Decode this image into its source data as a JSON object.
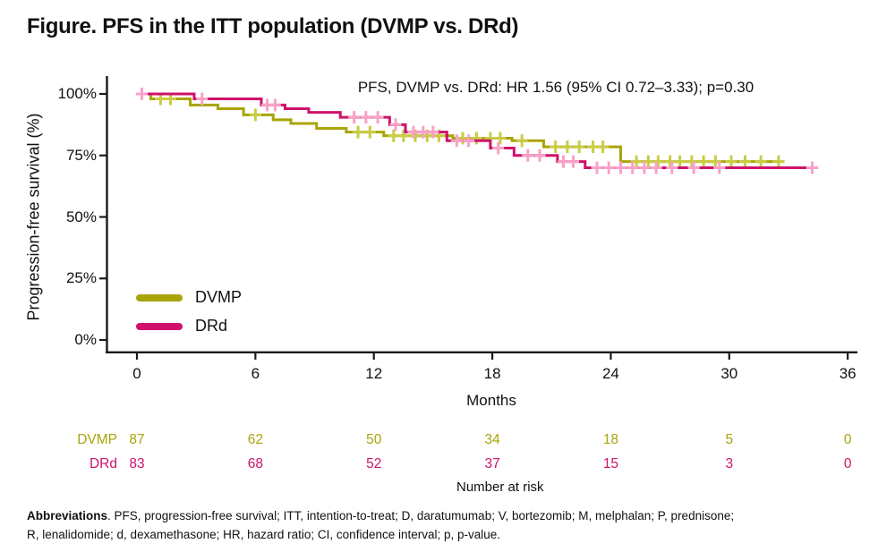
{
  "title": "Figure. PFS in the ITT population (DVMP vs. DRd)",
  "annotation": "PFS, DVMP vs. DRd: HR 1.56 (95% CI 0.72–3.33); p=0.30",
  "colors": {
    "dvmp_line": "#a8a40a",
    "dvmp_censor": "#c9cc44",
    "drd_line": "#d0116b",
    "drd_censor": "#f8a2c8",
    "axis": "#1a1a1a",
    "text": "#111111"
  },
  "legend": {
    "items": [
      {
        "label": "DVMP",
        "color": "#a8a40a"
      },
      {
        "label": "DRd",
        "color": "#d0116b"
      }
    ]
  },
  "chart_data": {
    "type": "line",
    "subtype": "kaplan-meier-step",
    "xlabel": "Months",
    "ylabel": "Progression-free survival (%)",
    "xlim": [
      0,
      36.5
    ],
    "ylim": [
      0,
      100
    ],
    "x_ticks": [
      0,
      6,
      12,
      18,
      24,
      30,
      36
    ],
    "y_ticks": [
      0,
      25,
      50,
      75,
      100
    ],
    "y_tick_suffix": "%",
    "grid": false,
    "legend_position": "lower-left-inside",
    "annotation": "PFS, DVMP vs. DRd: HR 1.56 (95% CI 0.72–3.33); p=0.30",
    "series": [
      {
        "name": "DVMP",
        "color": "#a8a40a",
        "censor_color": "#c9cc44",
        "end_month": 32.8,
        "steps": [
          [
            0,
            100
          ],
          [
            0.7,
            98
          ],
          [
            2.7,
            95.5
          ],
          [
            4.1,
            94
          ],
          [
            5.4,
            91.5
          ],
          [
            6.9,
            89.5
          ],
          [
            7.8,
            88
          ],
          [
            9.1,
            86
          ],
          [
            10.6,
            84.5
          ],
          [
            12.5,
            83
          ],
          [
            16,
            82
          ],
          [
            19,
            81
          ],
          [
            20.6,
            78.5
          ],
          [
            24.5,
            72.5
          ]
        ],
        "censors": [
          [
            1.2,
            98
          ],
          [
            1.7,
            98
          ],
          [
            6.0,
            91.5
          ],
          [
            11.2,
            84.5
          ],
          [
            11.8,
            84.5
          ],
          [
            13.0,
            83
          ],
          [
            13.5,
            83
          ],
          [
            14.1,
            83
          ],
          [
            14.7,
            83
          ],
          [
            15.3,
            83
          ],
          [
            16.5,
            82
          ],
          [
            17.2,
            82
          ],
          [
            17.9,
            82
          ],
          [
            18.4,
            82
          ],
          [
            19.5,
            81
          ],
          [
            21.2,
            78.5
          ],
          [
            21.8,
            78.5
          ],
          [
            22.4,
            78.5
          ],
          [
            23.1,
            78.5
          ],
          [
            23.6,
            78.5
          ],
          [
            25.3,
            72.5
          ],
          [
            25.9,
            72.5
          ],
          [
            26.4,
            72.5
          ],
          [
            27.0,
            72.5
          ],
          [
            27.5,
            72.5
          ],
          [
            28.1,
            72.5
          ],
          [
            28.7,
            72.5
          ],
          [
            29.3,
            72.5
          ],
          [
            30.1,
            72.5
          ],
          [
            30.8,
            72.5
          ],
          [
            31.6,
            72.5
          ],
          [
            32.5,
            72.5
          ]
        ]
      },
      {
        "name": "DRd",
        "color": "#d0116b",
        "censor_color": "#f8a2c8",
        "end_month": 34.5,
        "steps": [
          [
            0,
            100
          ],
          [
            2.9,
            98
          ],
          [
            6.3,
            95.5
          ],
          [
            7.5,
            94
          ],
          [
            8.7,
            92.5
          ],
          [
            10.3,
            90.5
          ],
          [
            12.8,
            87.5
          ],
          [
            13.6,
            84.5
          ],
          [
            15.7,
            81
          ],
          [
            17.9,
            78
          ],
          [
            19.1,
            75
          ],
          [
            21.3,
            72.5
          ],
          [
            22.7,
            70
          ]
        ],
        "censors": [
          [
            0.25,
            100
          ],
          [
            3.3,
            98
          ],
          [
            6.6,
            95.5
          ],
          [
            7.0,
            95.5
          ],
          [
            11.0,
            90.5
          ],
          [
            11.6,
            90.5
          ],
          [
            12.2,
            90.5
          ],
          [
            13.1,
            87.5
          ],
          [
            14.0,
            84.5
          ],
          [
            14.5,
            84.5
          ],
          [
            15.0,
            84.5
          ],
          [
            16.2,
            81
          ],
          [
            16.8,
            81
          ],
          [
            18.3,
            78
          ],
          [
            19.8,
            75
          ],
          [
            20.4,
            75
          ],
          [
            21.6,
            72.5
          ],
          [
            22.1,
            72.5
          ],
          [
            23.3,
            70
          ],
          [
            23.9,
            70
          ],
          [
            24.5,
            70
          ],
          [
            25.1,
            70
          ],
          [
            25.7,
            70
          ],
          [
            26.3,
            70
          ],
          [
            27.1,
            70
          ],
          [
            28.2,
            70
          ],
          [
            29.5,
            70
          ],
          [
            34.2,
            70
          ]
        ]
      }
    ],
    "risk_table": {
      "header": "Number at risk",
      "times": [
        0,
        6,
        12,
        18,
        24,
        30,
        36
      ],
      "rows": [
        {
          "name": "DVMP",
          "color": "#a8a40a",
          "counts": [
            87,
            62,
            50,
            34,
            18,
            5,
            0
          ]
        },
        {
          "name": "DRd",
          "color": "#d0116b",
          "counts": [
            83,
            68,
            52,
            37,
            15,
            3,
            0
          ]
        }
      ]
    }
  },
  "footnote": {
    "bold": "Abbreviations",
    "line1_rest": ". PFS, progression-free survival; ITT, intention-to-treat; D, daratumumab; V, bortezomib; M, melphalan; P, prednisone;",
    "line2": "R, lenalidomide; d, dexamethasone; HR, hazard ratio; CI, confidence interval; p, p-value."
  }
}
